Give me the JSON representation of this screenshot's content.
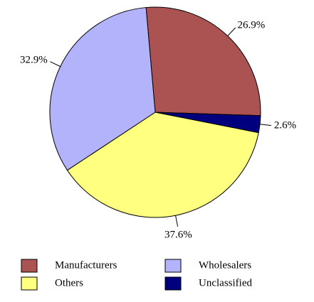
{
  "chart_data": {
    "type": "pie",
    "categories": [
      "Manufacturers",
      "Wholesalers",
      "Others",
      "Unclassified"
    ],
    "values": [
      26.9,
      32.9,
      37.6,
      2.6
    ],
    "value_labels": [
      "26.9%",
      "32.9%",
      "37.6%",
      "2.6%"
    ],
    "colors": [
      "#ab5353",
      "#b3b3fb",
      "#ffff80",
      "#00007f"
    ],
    "legend": "bottom"
  }
}
